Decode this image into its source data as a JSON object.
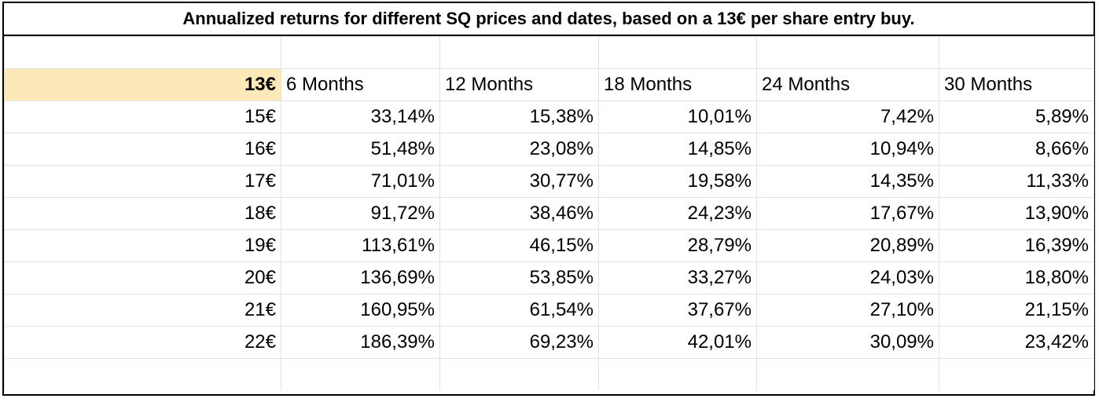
{
  "title": "Annualized returns for different SQ prices and dates, based on a 13€ per share entry buy.",
  "entry_price": "13€",
  "headers": [
    "6 Months",
    "12 Months",
    "18 Months",
    "24 Months",
    "30 Months"
  ],
  "rows": [
    {
      "price": "15€",
      "values": [
        "33,14%",
        "15,38%",
        "10,01%",
        "7,42%",
        "5,89%"
      ]
    },
    {
      "price": "16€",
      "values": [
        "51,48%",
        "23,08%",
        "14,85%",
        "10,94%",
        "8,66%"
      ]
    },
    {
      "price": "17€",
      "values": [
        "71,01%",
        "30,77%",
        "19,58%",
        "14,35%",
        "11,33%"
      ]
    },
    {
      "price": "18€",
      "values": [
        "91,72%",
        "38,46%",
        "24,23%",
        "17,67%",
        "13,90%"
      ]
    },
    {
      "price": "19€",
      "values": [
        "113,61%",
        "46,15%",
        "28,79%",
        "20,89%",
        "16,39%"
      ]
    },
    {
      "price": "20€",
      "values": [
        "136,69%",
        "53,85%",
        "33,27%",
        "24,03%",
        "18,80%"
      ]
    },
    {
      "price": "21€",
      "values": [
        "160,95%",
        "61,54%",
        "37,67%",
        "27,10%",
        "21,15%"
      ]
    },
    {
      "price": "22€",
      "values": [
        "186,39%",
        "69,23%",
        "42,01%",
        "30,09%",
        "23,42%"
      ]
    }
  ],
  "colors": {
    "entry_cell_background": "#fde8b8",
    "gridline": "#e2e2e2",
    "border": "#000000"
  }
}
